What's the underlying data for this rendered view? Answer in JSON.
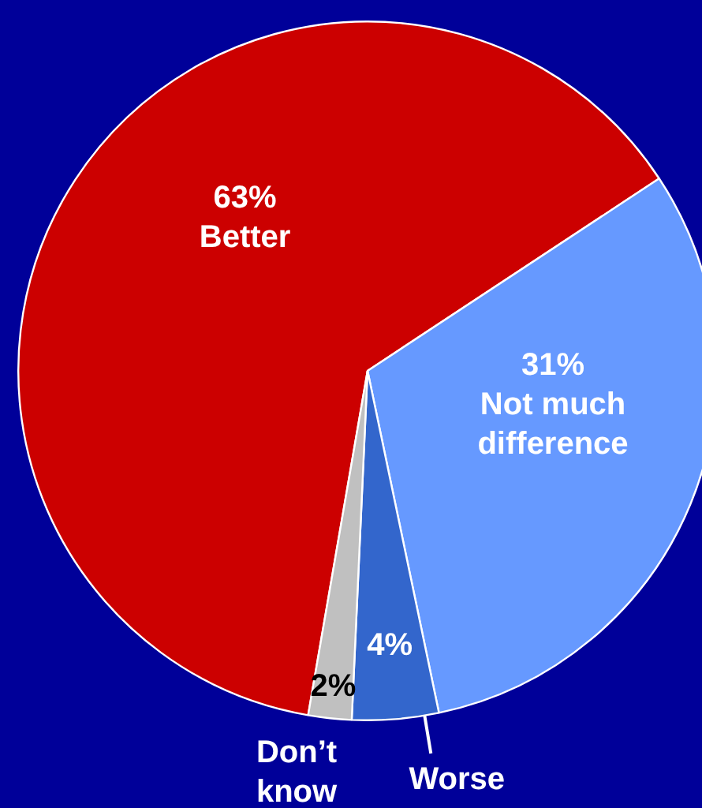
{
  "chart_data": {
    "type": "pie",
    "categories": [
      "Better",
      "Not much difference",
      "Worse",
      "Don’t know"
    ],
    "values": [
      63,
      31,
      4,
      2
    ],
    "colors": [
      "#cc0000",
      "#6699ff",
      "#3366cc",
      "#c0c0c0"
    ],
    "value_labels": [
      "63%",
      "31%",
      "4%",
      "2%"
    ]
  }
}
